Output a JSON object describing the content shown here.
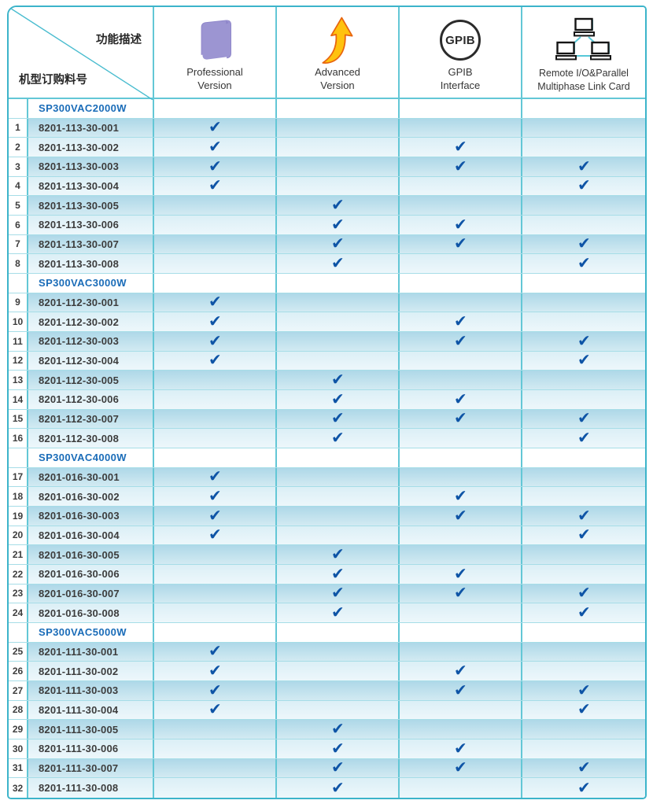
{
  "header": {
    "corner": {
      "top_right_label": "功能描述",
      "bottom_left_label": "机型订购料号"
    },
    "columns": [
      {
        "id": "professional",
        "label_lines": [
          "Professional",
          "Version"
        ],
        "icon": "book-icon"
      },
      {
        "id": "advanced",
        "label_lines": [
          "Advanced",
          "Version"
        ],
        "icon": "curved-up-arrow-icon"
      },
      {
        "id": "gpib",
        "label_lines": [
          "GPIB",
          "Interface"
        ],
        "icon": "gpib-circle-icon",
        "icon_text": "GPIB"
      },
      {
        "id": "remote",
        "label_lines": [
          "Remote I/O&Parallel",
          "Multiphase Link Card"
        ],
        "icon": "network-computers-icon"
      }
    ]
  },
  "marks": {
    "check": "✔"
  },
  "colors": {
    "border-outer": "#3cb4ca",
    "v-line": "#63c7d6",
    "h-line": "#a6dde7",
    "check": "#0e54a6",
    "model-blue": "#1a6cb8",
    "text-dark": "#3d3d3d",
    "row-dark-top": "#aed8e8",
    "row-dark-bottom": "#d2eaf2",
    "row-light-top": "#dbeff6",
    "row-light-bottom": "#edf7fb",
    "book-purple": "#9c95d2",
    "arrow-yellow": "#ffc20e",
    "arrow-stroke": "#e8650f",
    "laptop-teal": "#57c8d8"
  },
  "table": {
    "feature_order": [
      "professional",
      "advanced",
      "gpib",
      "remote"
    ],
    "sections": [
      {
        "model": "SP300VAC2000W",
        "rows": [
          {
            "no": 1,
            "part": "8201-113-30-001",
            "features": [
              true,
              false,
              false,
              false
            ]
          },
          {
            "no": 2,
            "part": "8201-113-30-002",
            "features": [
              true,
              false,
              true,
              false
            ]
          },
          {
            "no": 3,
            "part": "8201-113-30-003",
            "features": [
              true,
              false,
              true,
              true
            ]
          },
          {
            "no": 4,
            "part": "8201-113-30-004",
            "features": [
              true,
              false,
              false,
              true
            ]
          },
          {
            "no": 5,
            "part": "8201-113-30-005",
            "features": [
              false,
              true,
              false,
              false
            ]
          },
          {
            "no": 6,
            "part": "8201-113-30-006",
            "features": [
              false,
              true,
              true,
              false
            ]
          },
          {
            "no": 7,
            "part": "8201-113-30-007",
            "features": [
              false,
              true,
              true,
              true
            ]
          },
          {
            "no": 8,
            "part": "8201-113-30-008",
            "features": [
              false,
              true,
              false,
              true
            ]
          }
        ]
      },
      {
        "model": "SP300VAC3000W",
        "rows": [
          {
            "no": 9,
            "part": "8201-112-30-001",
            "features": [
              true,
              false,
              false,
              false
            ]
          },
          {
            "no": 10,
            "part": "8201-112-30-002",
            "features": [
              true,
              false,
              true,
              false
            ]
          },
          {
            "no": 11,
            "part": "8201-112-30-003",
            "features": [
              true,
              false,
              true,
              true
            ]
          },
          {
            "no": 12,
            "part": "8201-112-30-004",
            "features": [
              true,
              false,
              false,
              true
            ]
          },
          {
            "no": 13,
            "part": "8201-112-30-005",
            "features": [
              false,
              true,
              false,
              false
            ]
          },
          {
            "no": 14,
            "part": "8201-112-30-006",
            "features": [
              false,
              true,
              true,
              false
            ]
          },
          {
            "no": 15,
            "part": "8201-112-30-007",
            "features": [
              false,
              true,
              true,
              true
            ]
          },
          {
            "no": 16,
            "part": "8201-112-30-008",
            "features": [
              false,
              true,
              false,
              true
            ]
          }
        ]
      },
      {
        "model": "SP300VAC4000W",
        "rows": [
          {
            "no": 17,
            "part": "8201-016-30-001",
            "features": [
              true,
              false,
              false,
              false
            ]
          },
          {
            "no": 18,
            "part": "8201-016-30-002",
            "features": [
              true,
              false,
              true,
              false
            ]
          },
          {
            "no": 19,
            "part": "8201-016-30-003",
            "features": [
              true,
              false,
              true,
              true
            ]
          },
          {
            "no": 20,
            "part": "8201-016-30-004",
            "features": [
              true,
              false,
              false,
              true
            ]
          },
          {
            "no": 21,
            "part": "8201-016-30-005",
            "features": [
              false,
              true,
              false,
              false
            ]
          },
          {
            "no": 22,
            "part": "8201-016-30-006",
            "features": [
              false,
              true,
              true,
              false
            ]
          },
          {
            "no": 23,
            "part": "8201-016-30-007",
            "features": [
              false,
              true,
              true,
              true
            ]
          },
          {
            "no": 24,
            "part": "8201-016-30-008",
            "features": [
              false,
              true,
              false,
              true
            ]
          }
        ]
      },
      {
        "model": "SP300VAC5000W",
        "rows": [
          {
            "no": 25,
            "part": "8201-111-30-001",
            "features": [
              true,
              false,
              false,
              false
            ]
          },
          {
            "no": 26,
            "part": "8201-111-30-002",
            "features": [
              true,
              false,
              true,
              false
            ]
          },
          {
            "no": 27,
            "part": "8201-111-30-003",
            "features": [
              true,
              false,
              true,
              true
            ]
          },
          {
            "no": 28,
            "part": "8201-111-30-004",
            "features": [
              true,
              false,
              false,
              true
            ]
          },
          {
            "no": 29,
            "part": "8201-111-30-005",
            "features": [
              false,
              true,
              false,
              false
            ]
          },
          {
            "no": 30,
            "part": "8201-111-30-006",
            "features": [
              false,
              true,
              true,
              false
            ]
          },
          {
            "no": 31,
            "part": "8201-111-30-007",
            "features": [
              false,
              true,
              true,
              true
            ]
          },
          {
            "no": 32,
            "part": "8201-111-30-008",
            "features": [
              false,
              true,
              false,
              true
            ]
          }
        ]
      }
    ]
  }
}
